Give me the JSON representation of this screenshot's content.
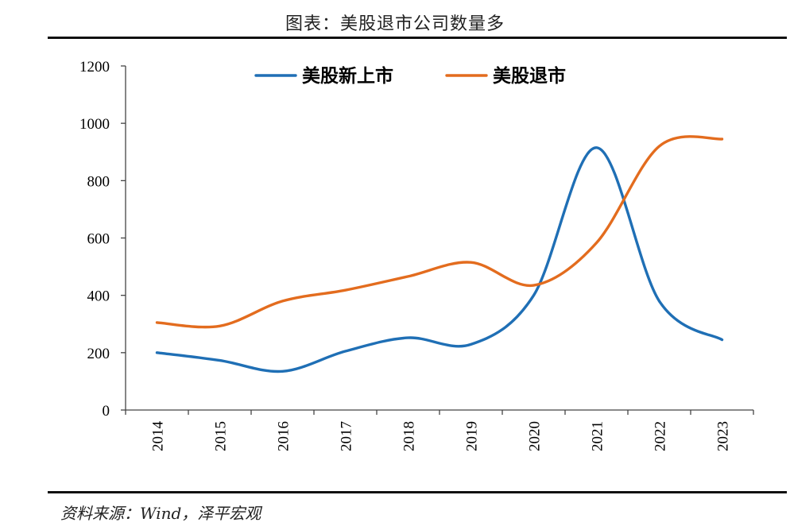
{
  "header": {
    "title": "图表：美股退市公司数量多"
  },
  "footer": {
    "source": "资料来源：Wind，泽平宏观"
  },
  "chart_data": {
    "type": "line",
    "title": "图表：美股退市公司数量多",
    "xlabel": "",
    "ylabel": "",
    "x": [
      "2014",
      "2015",
      "2016",
      "2017",
      "2018",
      "2019",
      "2020",
      "2021",
      "2022",
      "2023"
    ],
    "ylim": [
      0,
      1200
    ],
    "yticks": [
      0,
      200,
      400,
      600,
      800,
      1000,
      1200
    ],
    "grid": false,
    "smooth": true,
    "legend_position": "top",
    "series": [
      {
        "name": "美股新上市",
        "color": "#1f6fb5",
        "values": [
          200,
          173,
          135,
          205,
          252,
          229,
          400,
          915,
          380,
          245
        ]
      },
      {
        "name": "美股退市",
        "color": "#e36c1e",
        "values": [
          305,
          293,
          380,
          418,
          466,
          515,
          435,
          583,
          920,
          945
        ]
      }
    ]
  }
}
